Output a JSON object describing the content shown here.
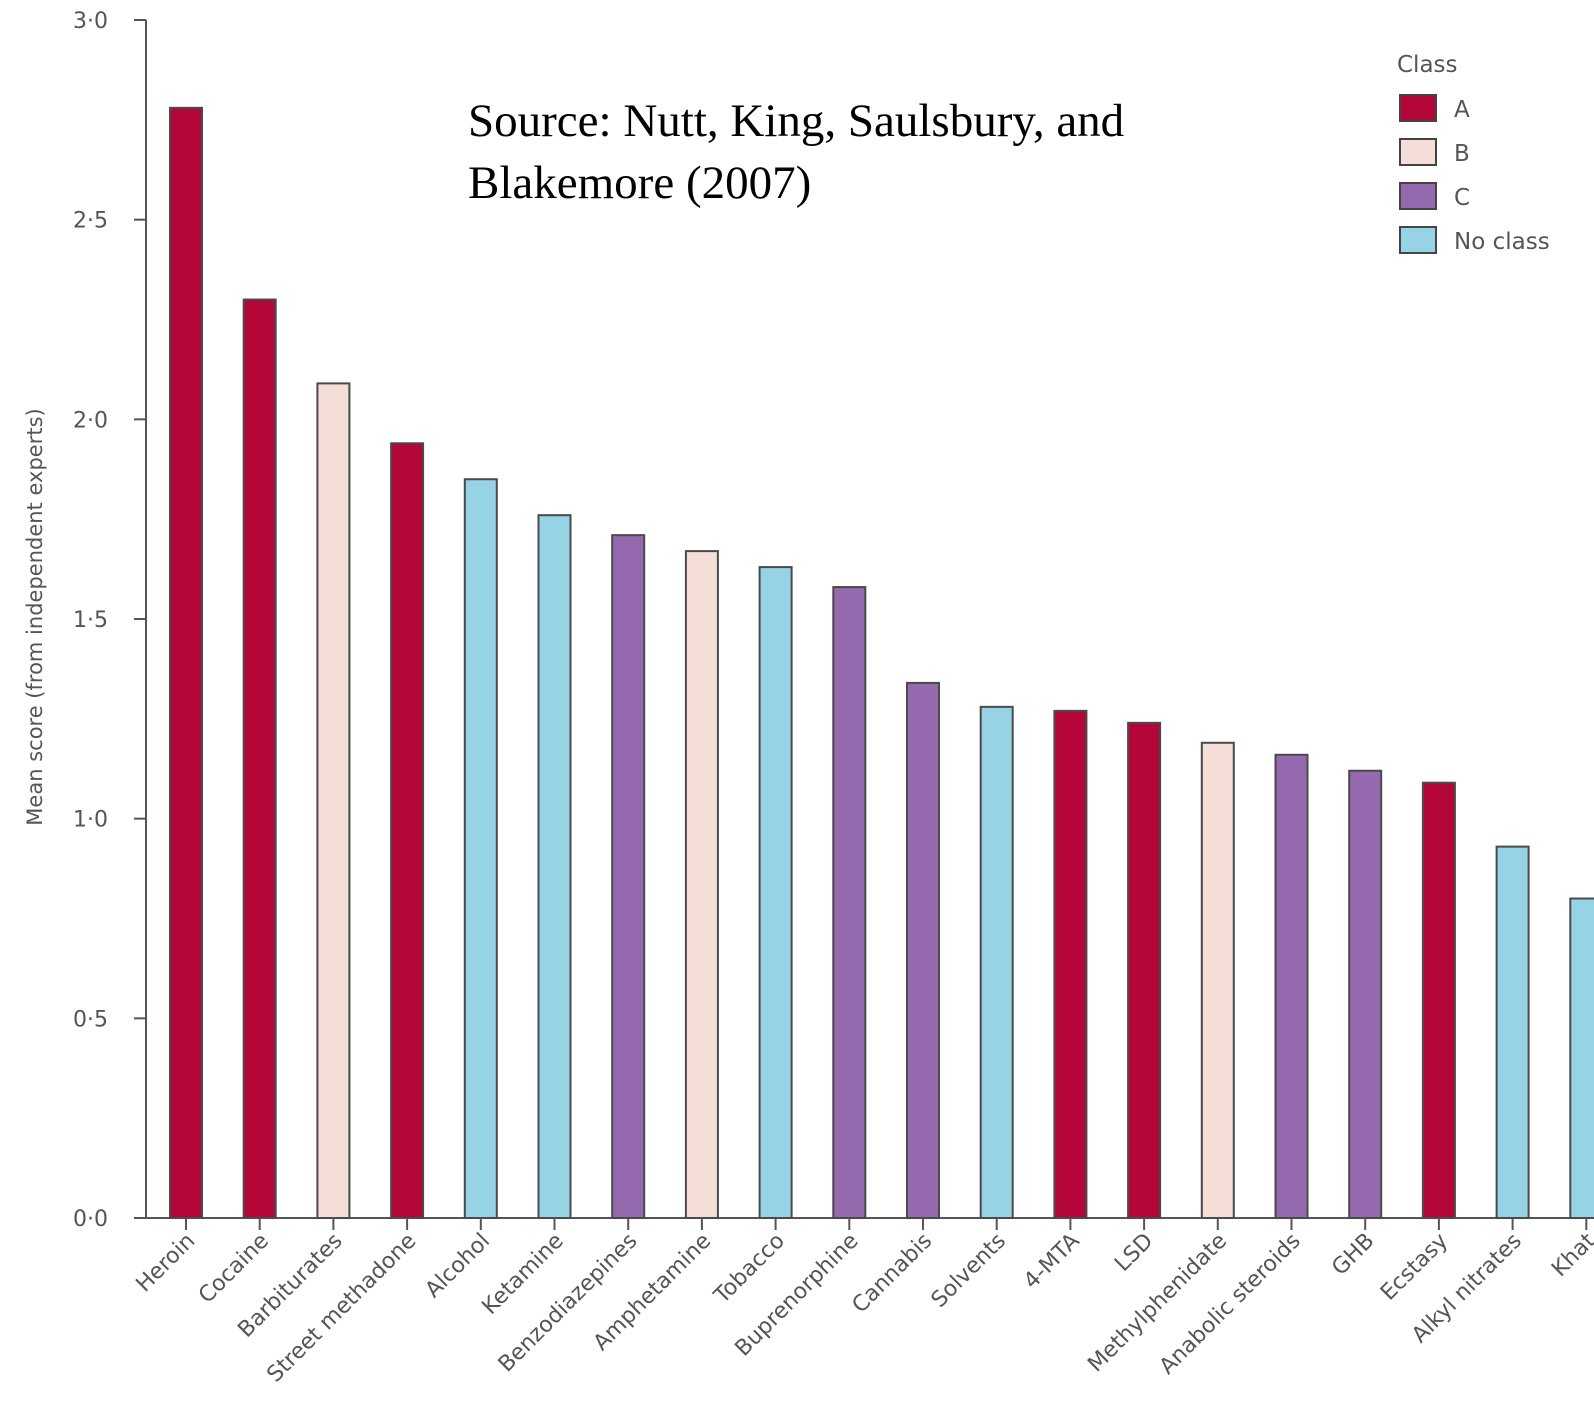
{
  "chart_data": {
    "type": "bar",
    "annotation": [
      "Source: Nutt, King, Saulsbury, and",
      "Blakemore (2007)"
    ],
    "ylabel": "Mean score (from independent experts)",
    "xlabel": "",
    "ylim": [
      0,
      3
    ],
    "yticks": [
      "0·0",
      "0·5",
      "1·0",
      "1·5",
      "2·0",
      "2·5",
      "3·0"
    ],
    "categories": [
      "Heroin",
      "Cocaine",
      "Barbiturates",
      "Street methadone",
      "Alcohol",
      "Ketamine",
      "Benzodiazepines",
      "Amphetamine",
      "Tobacco",
      "Buprenorphine",
      "Cannabis",
      "Solvents",
      "4-MTA",
      "LSD",
      "Methylphenidate",
      "Anabolic steroids",
      "GHB",
      "Ecstasy",
      "Alkyl nitrates",
      "Khat"
    ],
    "values": [
      2.78,
      2.3,
      2.09,
      1.94,
      1.85,
      1.76,
      1.71,
      1.67,
      1.63,
      1.58,
      1.34,
      1.28,
      1.27,
      1.24,
      1.19,
      1.16,
      1.12,
      1.09,
      0.93,
      0.8
    ],
    "classes": [
      "A",
      "A",
      "B",
      "A",
      "No class",
      "No class",
      "C",
      "B",
      "No class",
      "C",
      "C",
      "No class",
      "A",
      "A",
      "B",
      "C",
      "C",
      "A",
      "No class",
      "No class"
    ],
    "legend": {
      "title": "Class",
      "position": "top-right",
      "entries": [
        {
          "label": "A",
          "color": "#b5063a"
        },
        {
          "label": "B",
          "color": "#f5ddd8"
        },
        {
          "label": "C",
          "color": "#9469ad"
        },
        {
          "label": "No class",
          "color": "#96d3e4"
        }
      ]
    },
    "grid": false
  }
}
